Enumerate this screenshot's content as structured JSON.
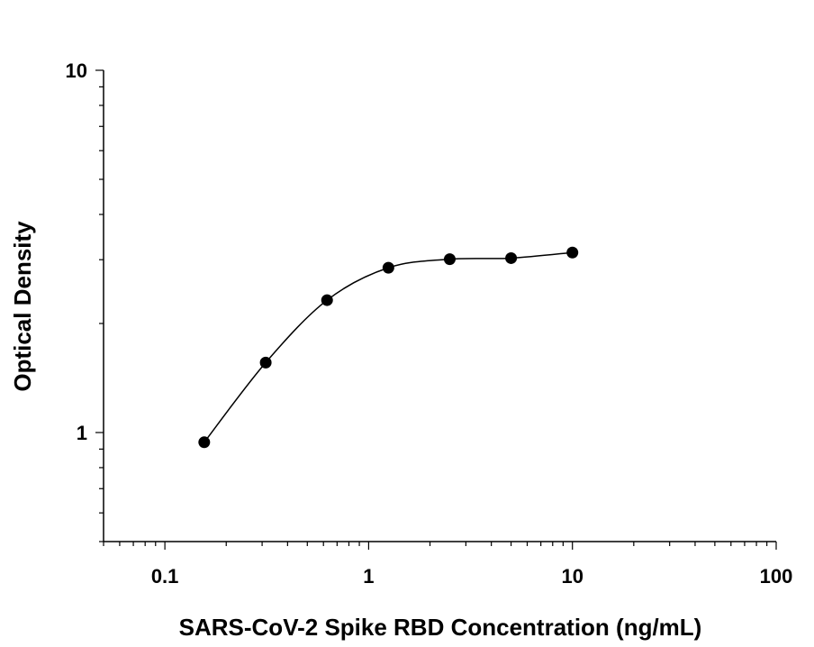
{
  "chart_data": {
    "type": "scatter",
    "title": "",
    "xlabel": "SARS-CoV-2 Spike RBD Concentration (ng/mL)",
    "ylabel": "Optical Density",
    "x_scale": "log",
    "y_scale": "log",
    "xlim": [
      0.05,
      100
    ],
    "ylim": [
      0.5,
      10
    ],
    "x_ticks": [
      {
        "value": 0.1,
        "label": "0.1"
      },
      {
        "value": 1,
        "label": "1"
      },
      {
        "value": 10,
        "label": "10"
      },
      {
        "value": 100,
        "label": "100"
      }
    ],
    "y_ticks": [
      {
        "value": 1,
        "label": "1"
      },
      {
        "value": 10,
        "label": "10"
      }
    ],
    "grid": false,
    "legend": "none",
    "fit_curve": "smooth sigmoidal fit line through points",
    "series": [
      {
        "marker": "filled-circle",
        "color": "#000000",
        "x": [
          0.156,
          0.3125,
          0.625,
          1.25,
          2.5,
          5,
          10
        ],
        "y": [
          0.94,
          1.56,
          2.32,
          2.85,
          3.01,
          3.03,
          3.14
        ]
      }
    ]
  }
}
